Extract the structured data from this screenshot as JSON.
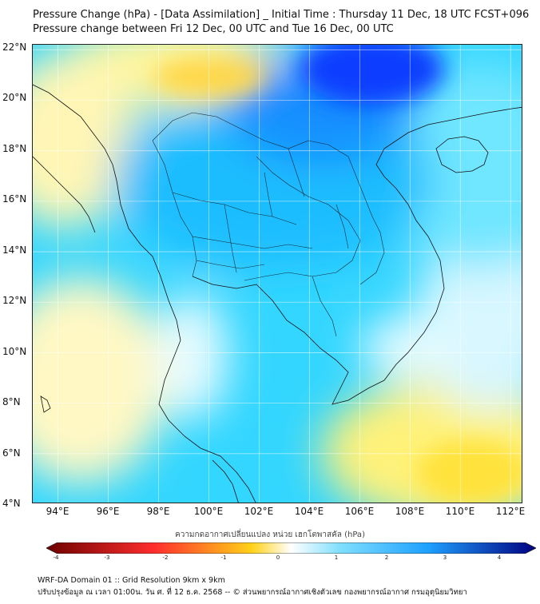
{
  "title": {
    "line1": "Pressure Change (hPa) - [Data Assimilation] _ Initial Time : Thursday 11 Dec, 18 UTC FCST+096",
    "line2": "Pressure change between Fri 12 Dec, 00 UTC and Tue 16 Dec, 00 UTC"
  },
  "map": {
    "lon_range": [
      93,
      112.5
    ],
    "lat_range": [
      4,
      22.2
    ],
    "lat_labels": [
      "22°N",
      "20°N",
      "18°N",
      "16°N",
      "14°N",
      "12°N",
      "10°N",
      "8°N",
      "6°N",
      "4°N"
    ],
    "lon_labels": [
      "94°E",
      "96°E",
      "98°E",
      "100°E",
      "102°E",
      "104°E",
      "106°E",
      "108°E",
      "110°E",
      "112°E"
    ]
  },
  "colorbar": {
    "label": "ความกดอากาศเปลี่ยนแปลง หน่วย เฮกโตพาสคัล (hPa)",
    "ticks": [
      "-4",
      "-3",
      "-2",
      "-1",
      "0",
      "1",
      "2",
      "3",
      "4"
    ],
    "colors": {
      "min": "#6e0000",
      "neg_mid": "#ff2d2d",
      "neg_low": "#ffd21a",
      "zero": "#ffffff",
      "pos_low": "#7fdfff",
      "pos_mid": "#1ea0ff",
      "max": "#000080"
    }
  },
  "footer": {
    "line1": "WRF-DA Domain 01 :: Grid Resolution 9km x 9km",
    "line2": "ปรับปรุงข้อมูล ณ เวลา 01:00น. วัน ศ. ที่ 12 ธ.ค. 2568 -- © ส่วนพยากรณ์อากาศเชิงตัวเลข กองพยากรณ์อากาศ กรมอุตุนิยมวิทยา"
  }
}
